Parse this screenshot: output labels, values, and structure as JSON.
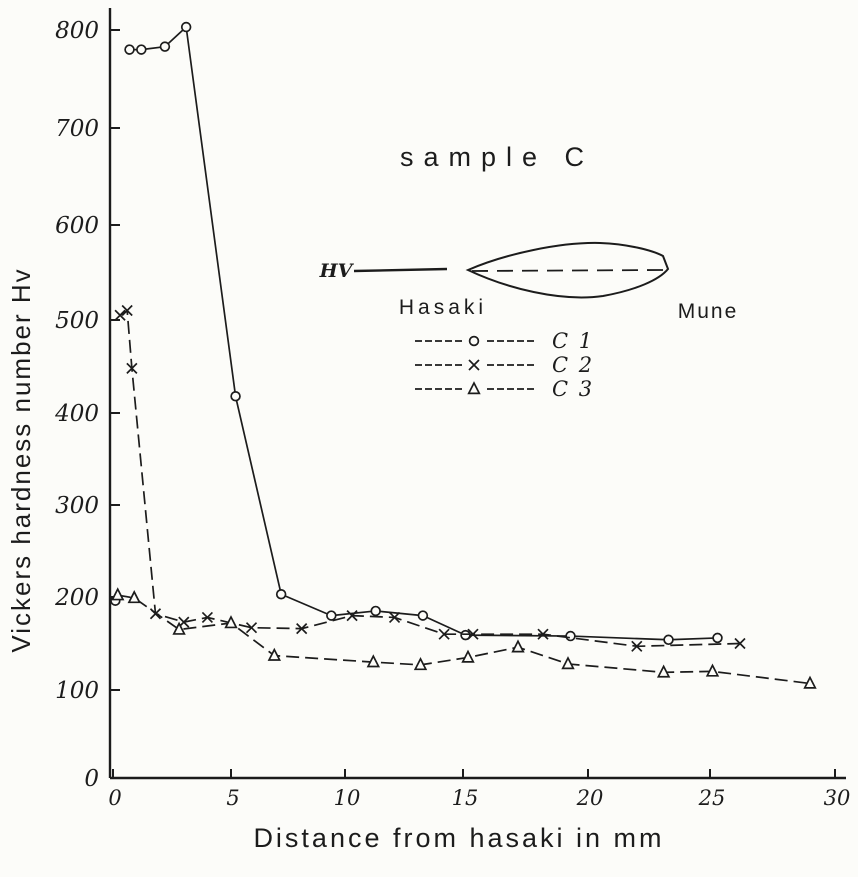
{
  "page": {
    "paper_color": "#fcfcf9",
    "ink_color": "#1c1c1c"
  },
  "title": "sample C",
  "axes": {
    "x": {
      "label": "Distance from hasaki in mm",
      "ticks": [
        0,
        5,
        10,
        15,
        20,
        25,
        30
      ],
      "tick_labels": [
        "0",
        "5",
        "10",
        "15",
        "20",
        "25",
        "30"
      ],
      "range": [
        0,
        30
      ]
    },
    "y": {
      "label": "Vickers hardness number Hv",
      "ticks": [
        0,
        100,
        200,
        300,
        400,
        500,
        600,
        700,
        800
      ],
      "tick_labels": [
        "0",
        "100",
        "200",
        "300",
        "400",
        "500",
        "600",
        "700",
        "800"
      ],
      "range": [
        0,
        850
      ]
    }
  },
  "annotation": {
    "hv_label": "HV",
    "hasaki_label": "Hasaki",
    "mune_label": "Mune"
  },
  "legend": {
    "items": [
      {
        "label": "C 1",
        "marker": "circle"
      },
      {
        "label": "C 2",
        "marker": "x"
      },
      {
        "label": "C 3",
        "marker": "triangle"
      }
    ]
  },
  "chart_data": {
    "type": "line",
    "title": "sample C",
    "xlabel": "Distance from hasaki in mm",
    "ylabel": "Vickers hardness number Hv",
    "xlim": [
      0,
      30
    ],
    "ylim": [
      0,
      850
    ],
    "grid": false,
    "legend_position": "upper-center-right",
    "series": [
      {
        "name": "C 1",
        "marker": "circle",
        "line_dash": "solid",
        "line_start_index": 1,
        "points": [
          [
            0.1,
            196
          ],
          [
            0.7,
            780
          ],
          [
            1.2,
            780
          ],
          [
            2.2,
            783
          ],
          [
            3.1,
            803
          ],
          [
            5.2,
            418
          ],
          [
            7.2,
            203
          ],
          [
            9.4,
            180
          ],
          [
            11.3,
            185
          ],
          [
            13.3,
            180
          ],
          [
            15.1,
            159
          ],
          [
            19.3,
            158
          ],
          [
            23.3,
            154
          ],
          [
            25.3,
            156
          ]
        ]
      },
      {
        "name": "C 2",
        "marker": "x",
        "line_dash": "dashed",
        "line_start_index": 0,
        "points": [
          [
            0.3,
            505
          ],
          [
            0.6,
            510
          ],
          [
            0.8,
            448
          ],
          [
            1.8,
            182
          ],
          [
            3.0,
            173
          ],
          [
            4.0,
            178
          ],
          [
            5.9,
            167
          ],
          [
            8.1,
            166
          ],
          [
            10.3,
            180
          ],
          [
            12.1,
            178
          ],
          [
            14.2,
            160
          ],
          [
            15.4,
            160
          ],
          [
            18.2,
            160
          ],
          [
            22.0,
            147
          ],
          [
            26.2,
            150
          ]
        ]
      },
      {
        "name": "C 3",
        "marker": "triangle",
        "line_dash": "dashed",
        "line_start_index": 0,
        "points": [
          [
            0.2,
            202
          ],
          [
            0.9,
            199
          ],
          [
            2.8,
            165
          ],
          [
            5.0,
            172
          ],
          [
            6.9,
            137
          ],
          [
            11.2,
            130
          ],
          [
            13.2,
            127
          ],
          [
            15.2,
            135
          ],
          [
            17.2,
            146
          ],
          [
            19.2,
            128
          ],
          [
            23.1,
            119
          ],
          [
            25.1,
            120
          ],
          [
            29.0,
            107
          ]
        ]
      }
    ]
  }
}
